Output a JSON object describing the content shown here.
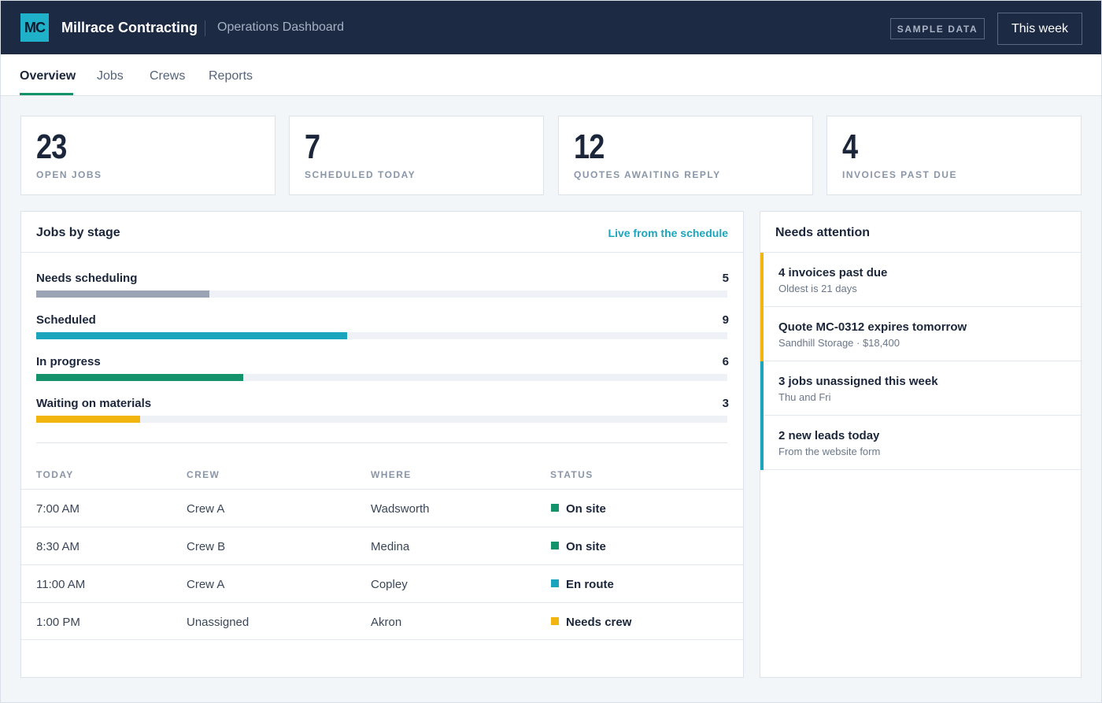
{
  "header": {
    "logo_text": "MC",
    "brand": "Millrace Contracting",
    "subtitle": "Operations Dashboard",
    "badge": "SAMPLE DATA",
    "range_button": "This week"
  },
  "tabs": [
    {
      "label": "Overview",
      "active": true
    },
    {
      "label": "Jobs",
      "active": false
    },
    {
      "label": "Crews",
      "active": false
    },
    {
      "label": "Reports",
      "active": false
    }
  ],
  "kpis": [
    {
      "value": "23",
      "label": "OPEN JOBS"
    },
    {
      "value": "7",
      "label": "SCHEDULED TODAY"
    },
    {
      "value": "12",
      "label": "QUOTES AWAITING REPLY"
    },
    {
      "value": "4",
      "label": "INVOICES PAST DUE"
    }
  ],
  "jobs_by_stage": {
    "title": "Jobs by stage",
    "link": "Live from the schedule",
    "max": 20,
    "stages": [
      {
        "label": "Needs scheduling",
        "count": 5,
        "color": "#9aa4b5"
      },
      {
        "label": "Scheduled",
        "count": 9,
        "color": "#1aa5bd"
      },
      {
        "label": "In progress",
        "count": 6,
        "color": "#14936a"
      },
      {
        "label": "Waiting on materials",
        "count": 3,
        "color": "#f2b40f"
      }
    ]
  },
  "today_table": {
    "columns": [
      "TODAY",
      "CREW",
      "WHERE",
      "STATUS"
    ],
    "rows": [
      {
        "time": "7:00 AM",
        "crew": "Crew A",
        "where": "Wadsworth",
        "status": "On site",
        "status_color": "#14936a"
      },
      {
        "time": "8:30 AM",
        "crew": "Crew B",
        "where": "Medina",
        "status": "On site",
        "status_color": "#14936a"
      },
      {
        "time": "11:00 AM",
        "crew": "Crew A",
        "where": "Copley",
        "status": "En route",
        "status_color": "#1aa5bd"
      },
      {
        "time": "1:00 PM",
        "crew": "Unassigned",
        "where": "Akron",
        "status": "Needs crew",
        "status_color": "#f2b40f"
      }
    ]
  },
  "attention": {
    "title": "Needs attention",
    "items": [
      {
        "title": "4 invoices past due",
        "sub": "Oldest is 21 days",
        "color": "#f2b40f"
      },
      {
        "title": "Quote MC-0312 expires tomorrow",
        "sub": "Sandhill Storage · $18,400",
        "color": "#f2b40f"
      },
      {
        "title": "3 jobs unassigned this week",
        "sub": "Thu and Fri",
        "color": "#1aa5bd"
      },
      {
        "title": "2 new leads today",
        "sub": "From the website form",
        "color": "#1aa5bd"
      }
    ]
  }
}
